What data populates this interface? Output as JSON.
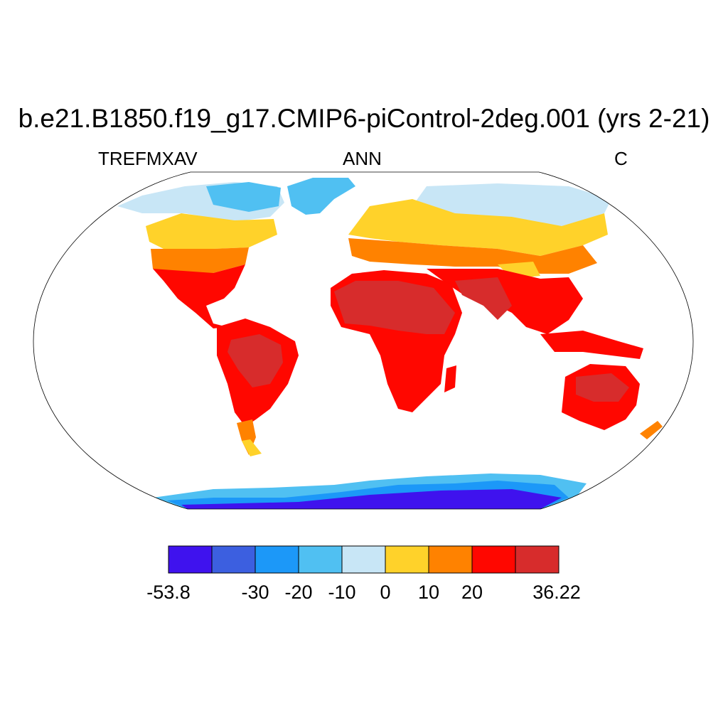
{
  "title": "b.e21.B1850.f19_g17.CMIP6-piControl-2deg.001 (yrs 2-21)",
  "left_label": "TREFMXAV",
  "center_label": "ANN",
  "right_label": "C",
  "colorbar": {
    "colors": [
      "#3f12ee",
      "#3c5fe0",
      "#1c98f8",
      "#50c0f2",
      "#c8e6f6",
      "#ffd22a",
      "#ff8200",
      "#ff0700",
      "#d72c2c"
    ],
    "labels": [
      "-53.8",
      "-30",
      "-20",
      "-10",
      "0",
      "10",
      "20",
      "36.22"
    ]
  },
  "map": {
    "projection": "Robinson",
    "variable": "TREFMXAV",
    "units": "C",
    "min": -53.8,
    "max": 36.22
  }
}
